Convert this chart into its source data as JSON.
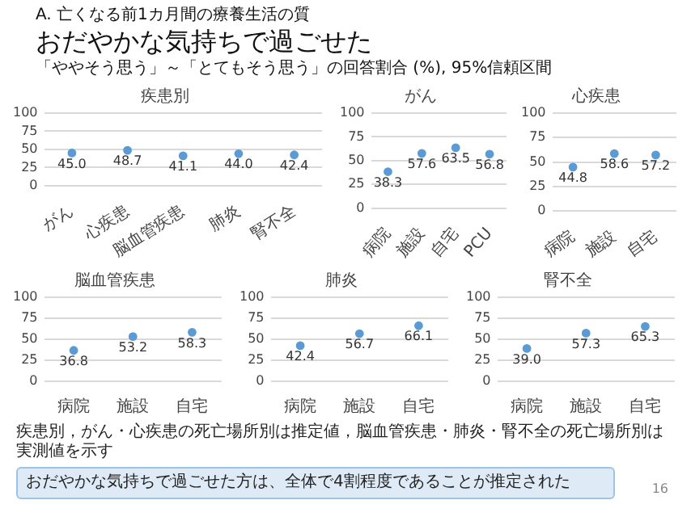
{
  "chart_data": [
    {
      "type": "other",
      "title": "おだやかな気持ちで過ごせた",
      "subtitle": "「ややそう思う」～「とてもそう思う」の回答割合 (%), 95%信頼区間",
      "annotations": [
        "A. 亡くなる前1カ月間の療養生活の質"
      ]
    },
    {
      "type": "scatter",
      "title": "疾患別",
      "categories": [
        "がん",
        "心疾患",
        "脳血管疾患",
        "肺炎",
        "腎不全"
      ],
      "values": [
        45.0,
        48.7,
        41.1,
        44.0,
        42.4
      ],
      "value_labels": [
        "45.0",
        "48.7",
        "41.1",
        "44.0",
        "42.4"
      ],
      "color": "#5b9bd5",
      "marker": "circle",
      "ylim": [
        0,
        100
      ],
      "yticks": [
        0,
        25,
        50,
        75,
        100
      ],
      "grid": "y"
    },
    {
      "type": "scatter",
      "title": "がん",
      "categories": [
        "病院",
        "施設",
        "自宅",
        "PCU"
      ],
      "values": [
        38.3,
        57.6,
        63.5,
        56.8
      ],
      "value_labels": [
        "38.3",
        "57.6",
        "63.5",
        "56.8"
      ],
      "color": "#5b9bd5",
      "marker": "circle",
      "ylim": [
        0,
        100
      ],
      "yticks": [
        0,
        25,
        50,
        75,
        100
      ],
      "grid": "y"
    },
    {
      "type": "scatter",
      "title": "心疾患",
      "categories": [
        "病院",
        "施設",
        "自宅"
      ],
      "values": [
        44.8,
        58.6,
        57.2
      ],
      "value_labels": [
        "44.8",
        "58.6",
        "57.2"
      ],
      "color": "#5b9bd5",
      "marker": "circle",
      "ylim": [
        0,
        100
      ],
      "yticks": [
        0,
        25,
        50,
        75,
        100
      ],
      "grid": "y"
    },
    {
      "type": "scatter",
      "title": "脳血管疾患",
      "categories": [
        "病院",
        "施設",
        "自宅"
      ],
      "values": [
        36.8,
        53.2,
        58.3
      ],
      "value_labels": [
        "36.8",
        "53.2",
        "58.3"
      ],
      "color": "#5b9bd5",
      "marker": "circle",
      "ylim": [
        0,
        100
      ],
      "yticks": [
        0,
        25,
        50,
        75,
        100
      ],
      "grid": "y"
    },
    {
      "type": "scatter",
      "title": "肺炎",
      "categories": [
        "病院",
        "施設",
        "自宅"
      ],
      "values": [
        42.4,
        56.7,
        66.1
      ],
      "value_labels": [
        "42.4",
        "56.7",
        "66.1"
      ],
      "color": "#5b9bd5",
      "marker": "circle",
      "ylim": [
        0,
        100
      ],
      "yticks": [
        0,
        25,
        50,
        75,
        100
      ],
      "grid": "y"
    },
    {
      "type": "scatter",
      "title": "腎不全",
      "categories": [
        "病院",
        "施設",
        "自宅"
      ],
      "values": [
        39.0,
        57.3,
        65.3
      ],
      "value_labels": [
        "39.0",
        "57.3",
        "65.3"
      ],
      "color": "#5b9bd5",
      "marker": "circle",
      "ylim": [
        0,
        100
      ],
      "yticks": [
        0,
        25,
        50,
        75,
        100
      ],
      "grid": "y"
    },
    {
      "type": "other",
      "annotations": [
        "疾患別，がん・心疾患の死亡場所別は推定値，脳血管疾患・肺炎・腎不全の死亡場所別は実測値を示す",
        "おだやかな気持ちで過ごせた方は、全体で4割程度であることが推定された",
        "16"
      ]
    }
  ]
}
